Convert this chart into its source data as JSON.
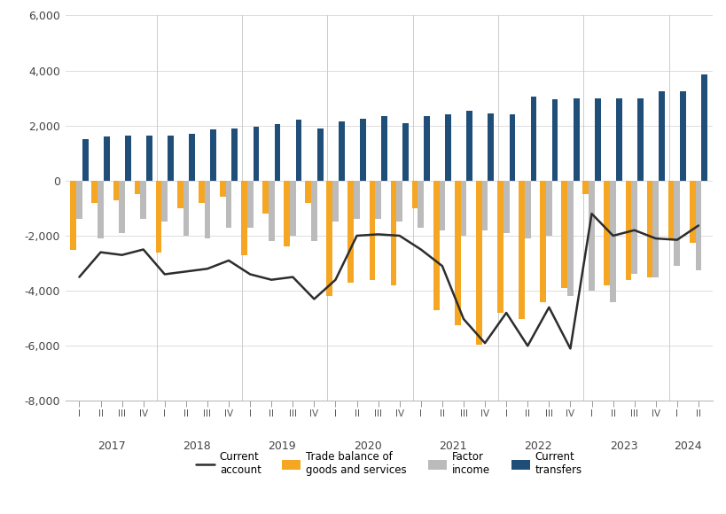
{
  "quarters": [
    "I",
    "II",
    "III",
    "IV",
    "I",
    "II",
    "III",
    "IV",
    "I",
    "II",
    "III",
    "IV",
    "I",
    "II",
    "III",
    "IV",
    "I",
    "II",
    "III",
    "IV",
    "I",
    "II",
    "III",
    "IV",
    "I",
    "II",
    "III",
    "IV",
    "I",
    "II"
  ],
  "year_labels": [
    "2017",
    "2018",
    "2019",
    "2020",
    "2021",
    "2022",
    "2023",
    "2024"
  ],
  "year_centers": [
    1.5,
    5.5,
    9.5,
    13.5,
    17.5,
    21.5,
    25.5,
    28.5
  ],
  "trade_balance": [
    -2500,
    -800,
    -700,
    -500,
    -2600,
    -1000,
    -800,
    -600,
    -2700,
    -1200,
    -2400,
    -800,
    -4200,
    -3700,
    -3600,
    -3800,
    -1000,
    -4700,
    -5258,
    -5958,
    -4800,
    -5026,
    -4400,
    -3900,
    -500,
    -3800,
    -3600,
    -3500,
    -2100,
    -2247
  ],
  "factor_income": [
    -1400,
    -2100,
    -1900,
    -1400,
    -1500,
    -2000,
    -2100,
    -1700,
    -1700,
    -2200,
    -2000,
    -2200,
    -1500,
    -1400,
    -1400,
    -1500,
    -1700,
    -1800,
    -2000,
    -1800,
    -1900,
    -2100,
    -2000,
    -4200,
    -4000,
    -4400,
    -3400,
    -3500,
    -3100,
    -3252
  ],
  "current_transfers": [
    1500,
    1600,
    1650,
    1650,
    1650,
    1700,
    1850,
    1900,
    1950,
    2050,
    2200,
    1900,
    2150,
    2250,
    2350,
    2100,
    2350,
    2400,
    2550,
    2450,
    2400,
    3050,
    2950,
    3000,
    3000,
    3000,
    3000,
    3250,
    3250,
    3869
  ],
  "current_account": [
    -3500,
    -2600,
    -2700,
    -2500,
    -3400,
    -3300,
    -3200,
    -2900,
    -3400,
    -3600,
    -3500,
    -4300,
    -3600,
    -2000,
    -1950,
    -2000,
    -2500,
    -3100,
    -5026,
    -5900,
    -4800,
    -6000,
    -4600,
    -6100,
    -1200,
    -2000,
    -1800,
    -2100,
    -2150,
    -1630
  ],
  "trade_color": "#F5A623",
  "factor_color": "#BBBBBB",
  "transfers_color": "#1F4E79",
  "account_color": "#2d2d2d",
  "ylim": [
    -8000,
    6000
  ],
  "yticks": [
    -8000,
    -6000,
    -4000,
    -2000,
    0,
    2000,
    4000,
    6000
  ],
  "bar_width": 0.28,
  "background_color": "#ffffff",
  "grid_color": "#dddddd",
  "year_sep_positions": [
    3.625,
    7.625,
    11.625,
    15.625,
    19.625,
    23.625,
    27.625
  ]
}
